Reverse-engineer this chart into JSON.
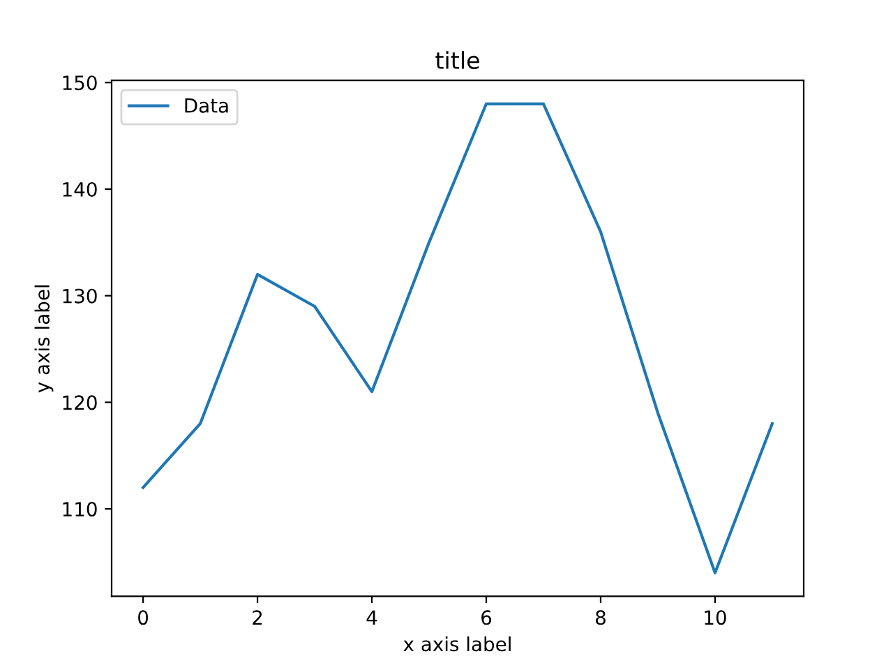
{
  "chart_data": {
    "type": "line",
    "title": "title",
    "xlabel": "x axis label",
    "ylabel": "y axis label",
    "x": [
      0,
      1,
      2,
      3,
      4,
      5,
      6,
      7,
      8,
      9,
      10,
      11
    ],
    "series": [
      {
        "name": "Data",
        "color": "#1f77b4",
        "values": [
          112,
          118,
          132,
          129,
          121,
          135,
          148,
          148,
          136,
          119,
          104,
          118
        ]
      }
    ],
    "xlim": [
      -0.55,
      11.55
    ],
    "ylim": [
      101.8,
      150.2
    ],
    "xticks": [
      0,
      2,
      4,
      6,
      8,
      10
    ],
    "yticks": [
      110,
      120,
      130,
      140,
      150
    ],
    "legend": "top left",
    "grid": false,
    "marker": "none",
    "line_style": "solid"
  }
}
